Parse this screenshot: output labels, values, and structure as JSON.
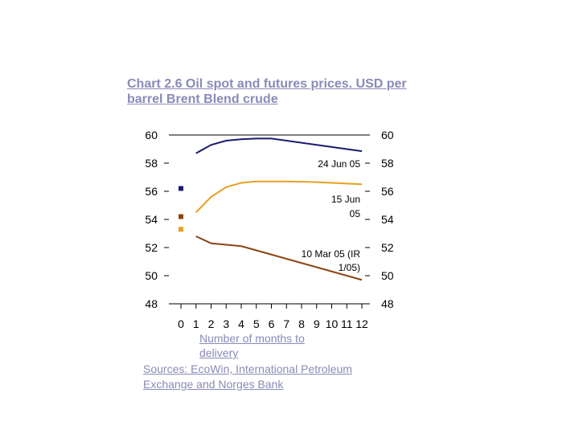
{
  "chart_data": {
    "type": "line",
    "title": "Chart 2.6 Oil spot and futures prices. USD per barrel Brent Blend crude",
    "xlabel": "Number of months to delivery",
    "source": "Sources: EcoWin, International Petroleum Exchange and Norges Bank",
    "x": [
      0,
      1,
      2,
      3,
      4,
      5,
      6,
      7,
      8,
      9,
      10,
      11,
      12
    ],
    "xlim": [
      0,
      12
    ],
    "ylim": [
      48,
      60
    ],
    "y_ticks": [
      48,
      50,
      52,
      54,
      56,
      58,
      60
    ],
    "x_ticks": [
      "0",
      "1",
      "2",
      "3",
      "4",
      "5",
      "6",
      "7",
      "8",
      "9",
      "10",
      "11",
      "12"
    ],
    "series": [
      {
        "name": "24 Jun 05",
        "color": "#1a1a6e",
        "values": [
          null,
          58.7,
          59.3,
          59.6,
          59.7,
          59.75,
          59.75,
          59.6,
          59.45,
          59.3,
          59.15,
          59.0,
          58.85
        ],
        "spot": 56.2
      },
      {
        "name": "15 Jun 05",
        "color": "#e8a020",
        "values": [
          null,
          54.5,
          55.6,
          56.3,
          56.6,
          56.7,
          56.7,
          56.7,
          56.68,
          56.65,
          56.6,
          56.55,
          56.5
        ],
        "spot": 53.3
      },
      {
        "name": "10 Mar 05 (IR 1/05)",
        "color": "#8b4513",
        "values": [
          null,
          52.8,
          52.3,
          52.2,
          52.1,
          51.8,
          51.5,
          51.2,
          50.9,
          50.6,
          50.3,
          50.0,
          49.7
        ],
        "spot": 54.2
      }
    ]
  }
}
